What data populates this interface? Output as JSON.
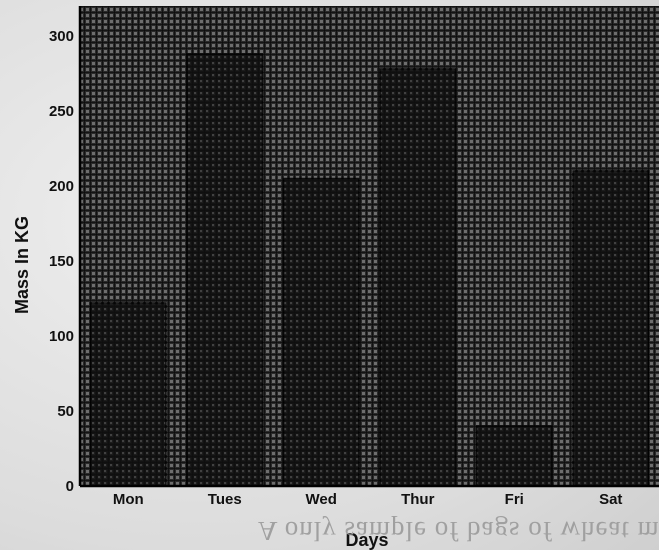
{
  "chart_data": {
    "type": "bar",
    "categories": [
      "Mon",
      "Tues",
      "Wed",
      "Thur",
      "Fri",
      "Sat"
    ],
    "values": [
      122,
      288,
      205,
      278,
      40,
      210
    ],
    "series": [
      {
        "values": [
          122,
          288,
          205,
          278,
          40,
          210
        ]
      }
    ],
    "title": "",
    "xlabel": "Days",
    "ylabel": "Mass In KG",
    "ylim": [
      0,
      320
    ],
    "yticks": [
      0,
      50,
      100,
      150,
      200,
      250,
      300
    ],
    "grid": true,
    "legend": "none",
    "colors": {
      "bar_fill": "#1e1e1e",
      "grid": "#1a1a1a",
      "background": "#e6e6e6"
    }
  },
  "caption_text": "A only sample of bags of wheat maize"
}
